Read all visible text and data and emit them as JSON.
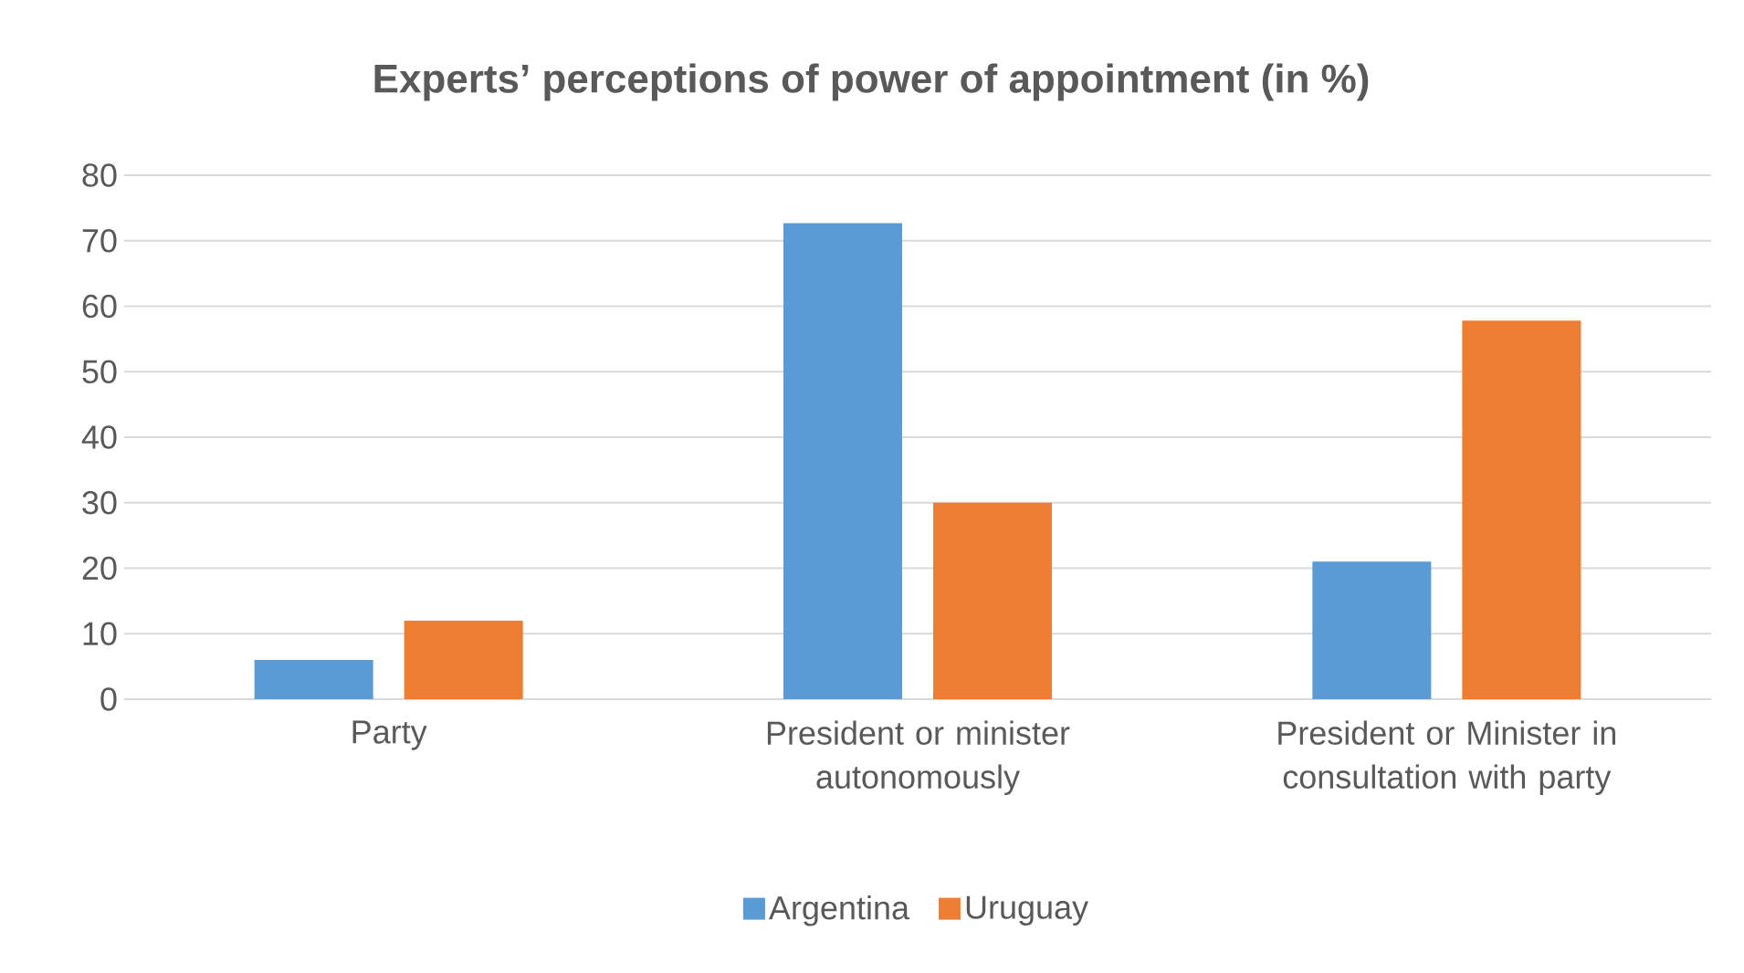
{
  "chart_data": {
    "type": "bar",
    "title": "Experts’ perceptions of power of appointment (in %)",
    "categories": [
      "Party",
      "President or minister autonomously",
      "President or Minister in consultation with party"
    ],
    "series": [
      {
        "name": "Argentina",
        "color": "#5b9bd5",
        "values": [
          6,
          72.7,
          21
        ]
      },
      {
        "name": "Uruguay",
        "color": "#ed7d31",
        "values": [
          12,
          30,
          57.8
        ]
      }
    ],
    "ylim": [
      0,
      80
    ],
    "yticks": [
      0,
      10,
      20,
      30,
      40,
      50,
      60,
      70,
      80
    ],
    "grid": "y",
    "legend": "bottom"
  }
}
